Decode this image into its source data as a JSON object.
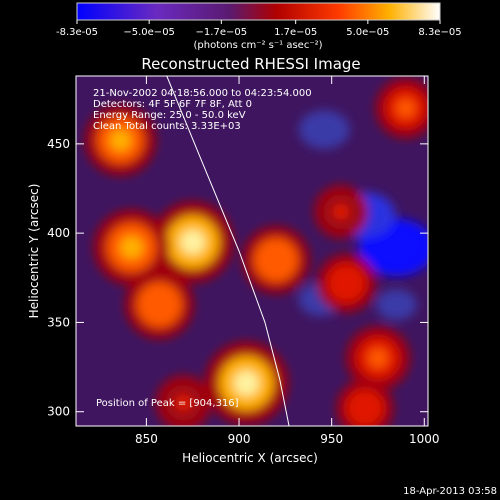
{
  "colorbar": {
    "tick_labels": [
      "-8.3e-05",
      "−5.0e−05",
      "−1.7e−05",
      "1.7e−05",
      "5.0e−05",
      "8.3e−05"
    ],
    "tick_values": [
      -8.3e-05,
      -5e-05,
      -1.7e-05,
      1.7e-05,
      5e-05,
      8.3e-05
    ],
    "range": [
      -8.3e-05,
      8.3e-05
    ],
    "units_label": "(photons cm⁻² s⁻¹ asec⁻²)",
    "colors": [
      "#0000ff",
      "#7a2aaa",
      "#5a1a6a",
      "#c80000",
      "#ff8a00",
      "#ffffff"
    ]
  },
  "chart_data": {
    "type": "heatmap",
    "title": "Reconstructed RHESSI Image",
    "xlabel": "Heliocentric X (arcsec)",
    "ylabel": "Heliocentric Y (arcsec)",
    "xlim": [
      812,
      1002
    ],
    "ylim": [
      292,
      488
    ],
    "x_ticks": [
      850,
      900,
      950,
      1000
    ],
    "x_tick_labels": [
      "850",
      "900",
      "950",
      "1000"
    ],
    "y_ticks": [
      300,
      350,
      400,
      450
    ],
    "y_tick_labels": [
      "300",
      "350",
      "400",
      "450"
    ],
    "info_lines": [
      "21-Nov-2002 04:18:56.000 to 04:23:54.000",
      "Detectors: 4F 5F 6F 7F 8F, Att 0",
      "Energy Range: 25.0 - 50.0 keV",
      "Clean    Total counts: 3.33E+03"
    ],
    "peak_label": "Position of Peak = [904,316]",
    "peak_position": [
      904,
      316
    ],
    "limb_curve": [
      [
        861,
        488
      ],
      [
        880,
        440
      ],
      [
        900,
        390
      ],
      [
        914,
        350
      ],
      [
        922,
        318
      ],
      [
        927,
        292
      ]
    ],
    "hot_spots": [
      {
        "x": 904,
        "y": 316,
        "value": 8.3e-05
      },
      {
        "x": 875,
        "y": 395,
        "value": 8e-05
      },
      {
        "x": 842,
        "y": 392,
        "value": 7.2e-05
      },
      {
        "x": 836,
        "y": 452,
        "value": 6.5e-05
      },
      {
        "x": 857,
        "y": 360,
        "value": 6.2e-05
      },
      {
        "x": 920,
        "y": 385,
        "value": 6e-05
      },
      {
        "x": 975,
        "y": 330,
        "value": 5.5e-05
      },
      {
        "x": 958,
        "y": 372,
        "value": 4.8e-05
      },
      {
        "x": 990,
        "y": 470,
        "value": 5e-05
      },
      {
        "x": 955,
        "y": 412,
        "value": 4e-05
      },
      {
        "x": 968,
        "y": 302,
        "value": 4.5e-05
      },
      {
        "x": 870,
        "y": 305,
        "value": 4.2e-05
      }
    ],
    "cold_spots": [
      {
        "x": 985,
        "y": 392,
        "value": -8.3e-05
      },
      {
        "x": 968,
        "y": 410,
        "value": -6e-05
      },
      {
        "x": 946,
        "y": 458,
        "value": -4.5e-05
      },
      {
        "x": 944,
        "y": 363,
        "value": -3.5e-05
      },
      {
        "x": 985,
        "y": 360,
        "value": -3e-05
      }
    ]
  },
  "footer": {
    "timestamp": "18-Apr-2013 03:58"
  }
}
